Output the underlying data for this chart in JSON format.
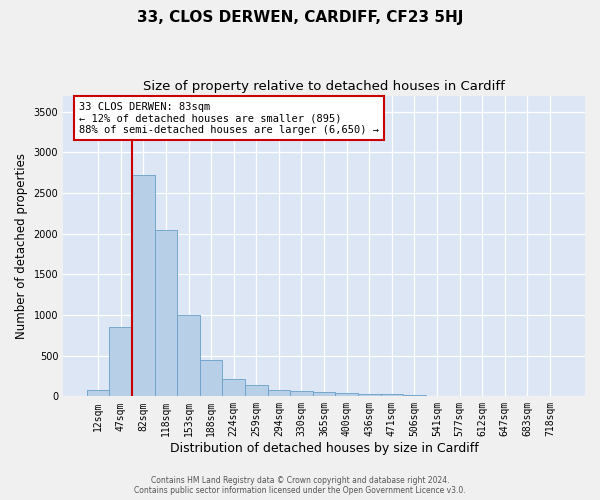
{
  "title": "33, CLOS DERWEN, CARDIFF, CF23 5HJ",
  "subtitle": "Size of property relative to detached houses in Cardiff",
  "xlabel": "Distribution of detached houses by size in Cardiff",
  "ylabel": "Number of detached properties",
  "categories": [
    "12sqm",
    "47sqm",
    "82sqm",
    "118sqm",
    "153sqm",
    "188sqm",
    "224sqm",
    "259sqm",
    "294sqm",
    "330sqm",
    "365sqm",
    "400sqm",
    "436sqm",
    "471sqm",
    "506sqm",
    "541sqm",
    "577sqm",
    "612sqm",
    "647sqm",
    "683sqm",
    "718sqm"
  ],
  "values": [
    75,
    850,
    2720,
    2050,
    1000,
    450,
    215,
    140,
    80,
    60,
    55,
    45,
    30,
    25,
    15,
    10,
    8,
    5,
    4,
    3,
    2
  ],
  "bar_color": "#b8cfe8",
  "bar_edge_color": "#6a9fc8",
  "red_line_color": "#cc0000",
  "annotation_line1": "33 CLOS DERWEN: 83sqm",
  "annotation_line2": "← 12% of detached houses are smaller (895)",
  "annotation_line3": "88% of semi-detached houses are larger (6,650) →",
  "ylim": [
    0,
    3700
  ],
  "yticks": [
    0,
    500,
    1000,
    1500,
    2000,
    2500,
    3000,
    3500
  ],
  "bg_color": "#dce6f5",
  "grid_color": "#ffffff",
  "fig_bg_color": "#f0f0f0",
  "footer_line1": "Contains HM Land Registry data © Crown copyright and database right 2024.",
  "footer_line2": "Contains public sector information licensed under the Open Government Licence v3.0.",
  "title_fontsize": 11,
  "subtitle_fontsize": 9.5,
  "xlabel_fontsize": 9,
  "ylabel_fontsize": 8.5,
  "tick_fontsize": 7,
  "footer_fontsize": 5.5,
  "annot_fontsize": 7.5
}
